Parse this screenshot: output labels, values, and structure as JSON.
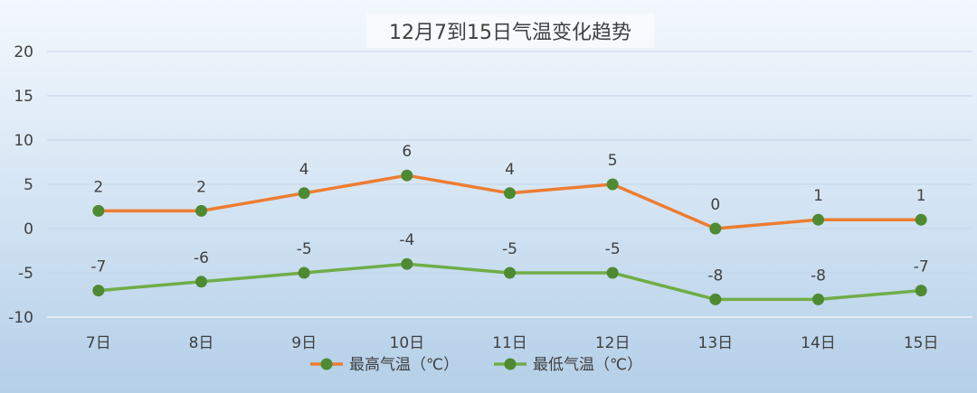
{
  "chart_data": {
    "type": "line",
    "title": "12月7到15日气温变化趋势",
    "categories": [
      "7日",
      "8日",
      "9日",
      "10日",
      "11日",
      "12日",
      "13日",
      "14日",
      "15日"
    ],
    "series": [
      {
        "name": "最高气温（℃）",
        "values": [
          2,
          2,
          4,
          6,
          4,
          5,
          0,
          1,
          1
        ],
        "line_color": "#ed7d31",
        "marker_color": "#4e8a32"
      },
      {
        "name": "最低气温（℃）",
        "values": [
          -7,
          -6,
          -5,
          -4,
          -5,
          -5,
          -8,
          -8,
          -7
        ],
        "line_color": "#70ad47",
        "marker_color": "#4e8a32"
      }
    ],
    "ylim": [
      -10,
      20
    ],
    "yticks": [
      20,
      15,
      10,
      5,
      0,
      -5,
      -10
    ],
    "grid": true,
    "legend_position": "bottom",
    "xlabel": "",
    "ylabel": ""
  }
}
